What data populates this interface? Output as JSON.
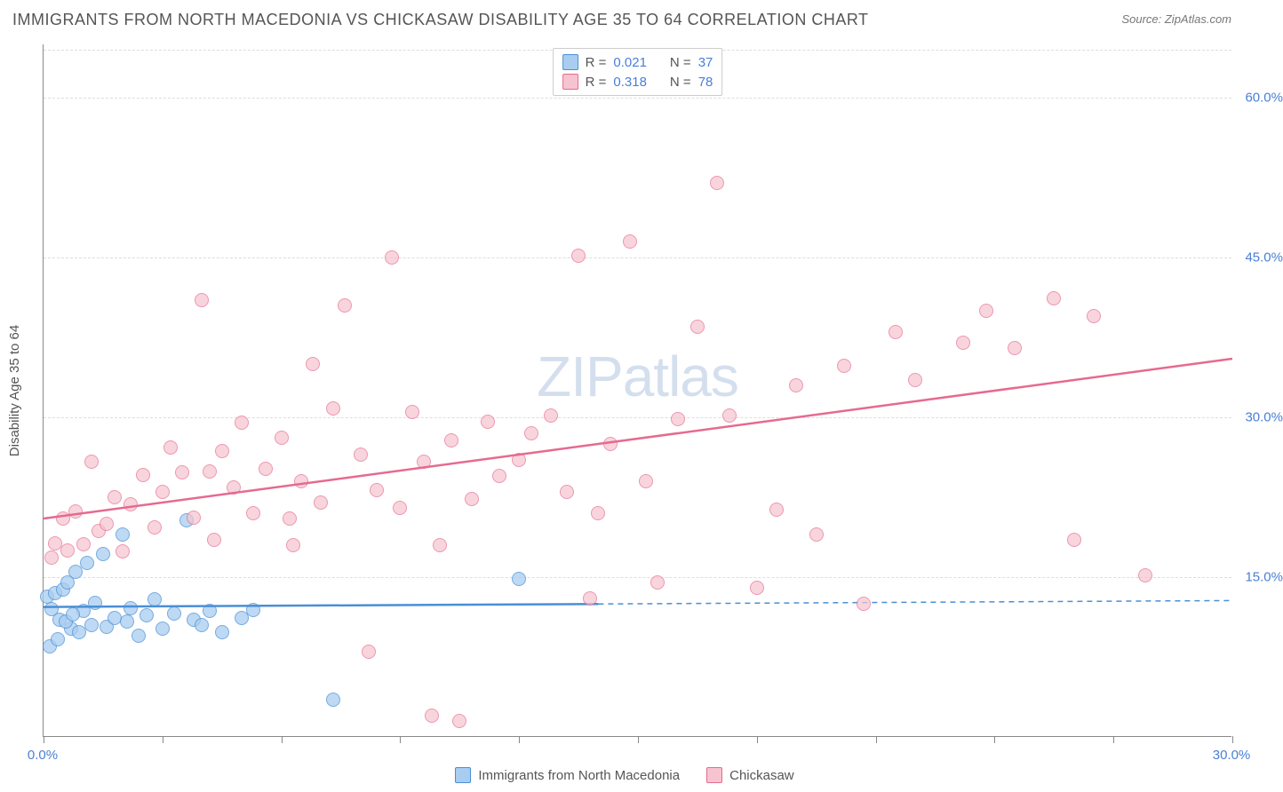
{
  "title": "IMMIGRANTS FROM NORTH MACEDONIA VS CHICKASAW DISABILITY AGE 35 TO 64 CORRELATION CHART",
  "source": "Source: ZipAtlas.com",
  "y_axis_title": "Disability Age 35 to 64",
  "watermark_bold": "ZIP",
  "watermark_thin": "atlas",
  "chart": {
    "type": "scatter",
    "background_color": "#ffffff",
    "grid_color": "#dddddd",
    "axis_color": "#888888",
    "tick_label_color": "#4a7fd6",
    "tick_fontsize": 15,
    "title_color": "#555555",
    "title_fontsize": 18,
    "xlim": [
      0,
      30
    ],
    "ylim": [
      0,
      65
    ],
    "x_ticks": [
      0,
      3,
      6,
      9,
      12,
      15,
      18,
      21,
      24,
      27,
      30
    ],
    "x_tick_labels": [
      "0.0%",
      "",
      "",
      "",
      "",
      "",
      "",
      "",
      "",
      "",
      "30.0%"
    ],
    "y_ticks": [
      15,
      30,
      45,
      60
    ],
    "y_tick_labels": [
      "15.0%",
      "30.0%",
      "45.0%",
      "60.0%"
    ],
    "series": [
      {
        "name": "Immigrants from North Macedonia",
        "marker_fill": "#a9cdf0",
        "marker_stroke": "#4a8fd6",
        "marker_opacity": 0.75,
        "marker_size": 16,
        "trend": {
          "x_solid_max": 14,
          "y_start": 12.2,
          "y_end": 12.8,
          "stroke": "#4a8fd6",
          "width": 2.5
        },
        "points": [
          [
            0.1,
            13.2
          ],
          [
            0.2,
            12.0
          ],
          [
            0.3,
            13.5
          ],
          [
            0.4,
            11.0
          ],
          [
            0.5,
            13.8
          ],
          [
            0.6,
            14.5
          ],
          [
            0.7,
            10.2
          ],
          [
            0.8,
            15.5
          ],
          [
            0.9,
            9.8
          ],
          [
            1.0,
            11.8
          ],
          [
            1.1,
            16.3
          ],
          [
            1.2,
            10.5
          ],
          [
            1.3,
            12.6
          ],
          [
            1.5,
            17.2
          ],
          [
            1.6,
            10.3
          ],
          [
            1.8,
            11.2
          ],
          [
            2.0,
            19.0
          ],
          [
            2.1,
            10.8
          ],
          [
            2.2,
            12.1
          ],
          [
            2.4,
            9.5
          ],
          [
            2.6,
            11.4
          ],
          [
            2.8,
            12.9
          ],
          [
            3.0,
            10.2
          ],
          [
            3.3,
            11.6
          ],
          [
            3.6,
            20.3
          ],
          [
            3.8,
            11.0
          ],
          [
            4.0,
            10.5
          ],
          [
            4.2,
            11.8
          ],
          [
            4.5,
            9.8
          ],
          [
            5.0,
            11.2
          ],
          [
            5.3,
            11.9
          ],
          [
            7.3,
            3.5
          ],
          [
            12.0,
            14.8
          ],
          [
            0.15,
            8.5
          ],
          [
            0.35,
            9.2
          ],
          [
            0.55,
            10.8
          ],
          [
            0.75,
            11.5
          ]
        ]
      },
      {
        "name": "Chickasaw",
        "marker_fill": "#f6c4d0",
        "marker_stroke": "#e66a8f",
        "marker_opacity": 0.7,
        "marker_size": 16,
        "trend": {
          "x_solid_max": 30,
          "y_start": 20.5,
          "y_end": 35.5,
          "stroke": "#e66a8f",
          "width": 2.5
        },
        "points": [
          [
            0.2,
            16.8
          ],
          [
            0.3,
            18.2
          ],
          [
            0.5,
            20.5
          ],
          [
            0.6,
            17.5
          ],
          [
            0.8,
            21.2
          ],
          [
            1.0,
            18.1
          ],
          [
            1.2,
            25.8
          ],
          [
            1.4,
            19.3
          ],
          [
            1.6,
            20.0
          ],
          [
            1.8,
            22.5
          ],
          [
            2.0,
            17.4
          ],
          [
            2.2,
            21.8
          ],
          [
            2.5,
            24.6
          ],
          [
            2.8,
            19.7
          ],
          [
            3.0,
            23.0
          ],
          [
            3.2,
            27.2
          ],
          [
            3.5,
            24.8
          ],
          [
            3.8,
            20.6
          ],
          [
            4.0,
            41.0
          ],
          [
            4.2,
            24.9
          ],
          [
            4.5,
            26.8
          ],
          [
            4.8,
            23.4
          ],
          [
            5.0,
            29.5
          ],
          [
            5.3,
            21.0
          ],
          [
            5.6,
            25.2
          ],
          [
            6.0,
            28.1
          ],
          [
            6.2,
            20.5
          ],
          [
            6.5,
            24.0
          ],
          [
            6.8,
            35.0
          ],
          [
            7.0,
            22.0
          ],
          [
            7.3,
            30.8
          ],
          [
            7.6,
            40.5
          ],
          [
            8.0,
            26.5
          ],
          [
            8.2,
            8.0
          ],
          [
            8.4,
            23.2
          ],
          [
            8.8,
            45.0
          ],
          [
            9.0,
            21.5
          ],
          [
            9.3,
            30.5
          ],
          [
            9.6,
            25.8
          ],
          [
            10.0,
            18.0
          ],
          [
            10.3,
            27.8
          ],
          [
            10.5,
            1.5
          ],
          [
            10.8,
            22.3
          ],
          [
            11.2,
            29.6
          ],
          [
            11.5,
            24.5
          ],
          [
            12.0,
            26.0
          ],
          [
            12.3,
            28.5
          ],
          [
            12.8,
            30.2
          ],
          [
            13.2,
            23.0
          ],
          [
            13.5,
            45.2
          ],
          [
            13.8,
            13.0
          ],
          [
            14.0,
            21.0
          ],
          [
            14.3,
            27.5
          ],
          [
            14.8,
            46.5
          ],
          [
            15.2,
            24.0
          ],
          [
            15.5,
            14.5
          ],
          [
            16.0,
            29.8
          ],
          [
            16.5,
            38.5
          ],
          [
            17.0,
            52.0
          ],
          [
            17.3,
            30.2
          ],
          [
            18.0,
            14.0
          ],
          [
            18.5,
            21.3
          ],
          [
            19.0,
            33.0
          ],
          [
            19.5,
            19.0
          ],
          [
            20.2,
            34.8
          ],
          [
            20.7,
            12.5
          ],
          [
            21.5,
            38.0
          ],
          [
            22.0,
            33.5
          ],
          [
            23.2,
            37.0
          ],
          [
            23.8,
            40.0
          ],
          [
            24.5,
            36.5
          ],
          [
            25.5,
            41.2
          ],
          [
            26.5,
            39.5
          ],
          [
            27.8,
            15.2
          ],
          [
            26.0,
            18.5
          ],
          [
            9.8,
            2.0
          ],
          [
            4.3,
            18.5
          ],
          [
            6.3,
            18.0
          ]
        ]
      }
    ]
  },
  "legend_top": {
    "rows": [
      {
        "swatch_fill": "#a9cdf0",
        "swatch_stroke": "#4a8fd6",
        "r_label": "R =",
        "r": "0.021",
        "n_label": "N =",
        "n": "37"
      },
      {
        "swatch_fill": "#f6c4d0",
        "swatch_stroke": "#e66a8f",
        "r_label": "R =",
        "r": "0.318",
        "n_label": "N =",
        "n": "78"
      }
    ]
  },
  "legend_bottom": [
    {
      "swatch_fill": "#a9cdf0",
      "swatch_stroke": "#4a8fd6",
      "label": "Immigrants from North Macedonia"
    },
    {
      "swatch_fill": "#f6c4d0",
      "swatch_stroke": "#e66a8f",
      "label": "Chickasaw"
    }
  ]
}
